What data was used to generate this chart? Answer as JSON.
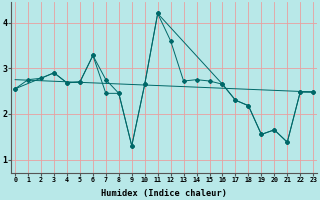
{
  "xlabel": "Humidex (Indice chaleur)",
  "background_color": "#b8e8e8",
  "grid_color": "#e8a0a0",
  "line_color": "#006868",
  "xlim_min": -0.3,
  "xlim_max": 23.3,
  "ylim_min": 0.7,
  "ylim_max": 4.45,
  "yticks": [
    1,
    2,
    3,
    4
  ],
  "xticks": [
    0,
    1,
    2,
    3,
    4,
    5,
    6,
    7,
    8,
    9,
    10,
    11,
    12,
    13,
    14,
    15,
    16,
    17,
    18,
    19,
    20,
    21,
    22,
    23
  ],
  "line1_x": [
    0,
    1,
    2,
    3,
    4,
    5,
    6,
    7,
    8,
    9,
    10,
    11,
    12,
    13,
    14,
    15,
    16,
    17,
    18,
    19,
    20,
    21,
    22,
    23
  ],
  "line1_y": [
    2.55,
    2.75,
    2.78,
    2.9,
    2.68,
    2.7,
    3.28,
    2.75,
    2.45,
    1.3,
    2.65,
    4.2,
    3.6,
    2.72,
    2.75,
    2.72,
    2.65,
    2.3,
    2.18,
    1.55,
    1.65,
    1.38,
    2.48,
    2.48
  ],
  "line2_x": [
    0,
    23
  ],
  "line2_y": [
    2.75,
    2.48
  ],
  "line3_x": [
    0,
    3,
    4,
    5,
    6,
    7,
    8,
    9,
    10,
    11,
    16,
    17,
    18,
    19,
    20,
    21,
    22,
    23
  ],
  "line3_y": [
    2.55,
    2.9,
    2.68,
    2.7,
    3.28,
    2.45,
    2.45,
    1.3,
    2.65,
    4.2,
    2.65,
    2.3,
    2.18,
    1.55,
    1.65,
    1.38,
    2.48,
    2.48
  ]
}
